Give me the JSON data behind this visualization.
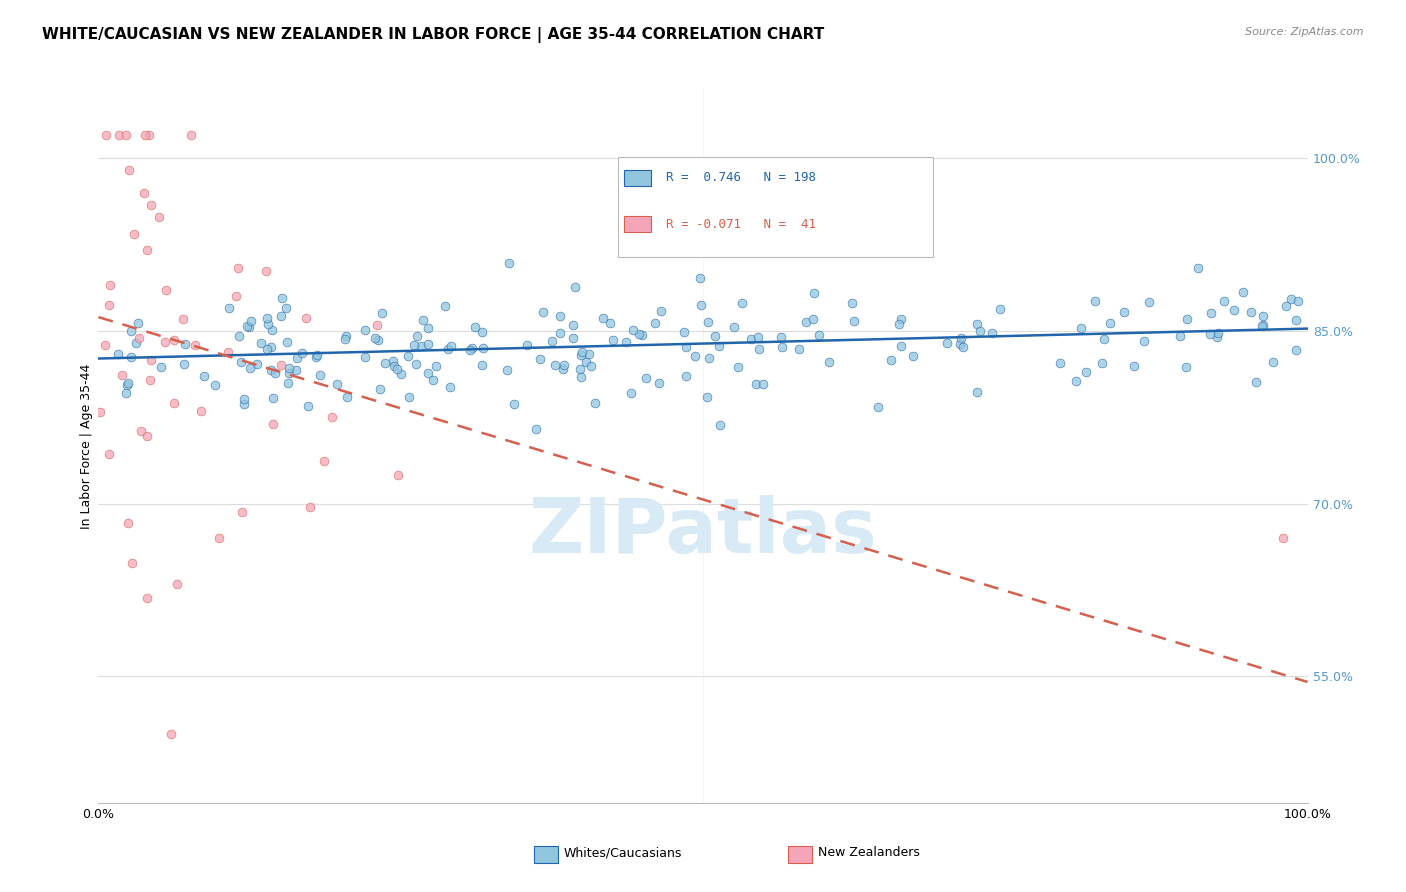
{
  "title": "WHITE/CAUCASIAN VS NEW ZEALANDER IN LABOR FORCE | AGE 35-44 CORRELATION CHART",
  "source": "Source: ZipAtlas.com",
  "ylabel": "In Labor Force | Age 35-44",
  "blue_R": 0.746,
  "blue_N": 198,
  "pink_R": -0.071,
  "pink_N": 41,
  "blue_color": "#92c5de",
  "pink_color": "#f4a6b8",
  "blue_line_color": "#2166ac",
  "pink_line_color": "#d6604d",
  "legend_labels": [
    "Whites/Caucasians",
    "New Zealanders"
  ],
  "xlim": [
    0.0,
    1.0
  ],
  "ylim": [
    0.44,
    1.06
  ],
  "ytick_vals": [
    0.55,
    0.7,
    0.85,
    1.0
  ],
  "ytick_labels": [
    "55.0%",
    "70.0%",
    "85.0%",
    "100.0%"
  ],
  "blue_trend_y0": 0.826,
  "blue_trend_y1": 0.852,
  "pink_trend_y0": 0.862,
  "pink_trend_y1": 0.545,
  "grid_color": "#dddddd",
  "title_fontsize": 11,
  "right_label_color": "#5599cc",
  "watermark_color": "#d8eaf5",
  "watermark_fontsize": 55,
  "scatter_size": 40
}
